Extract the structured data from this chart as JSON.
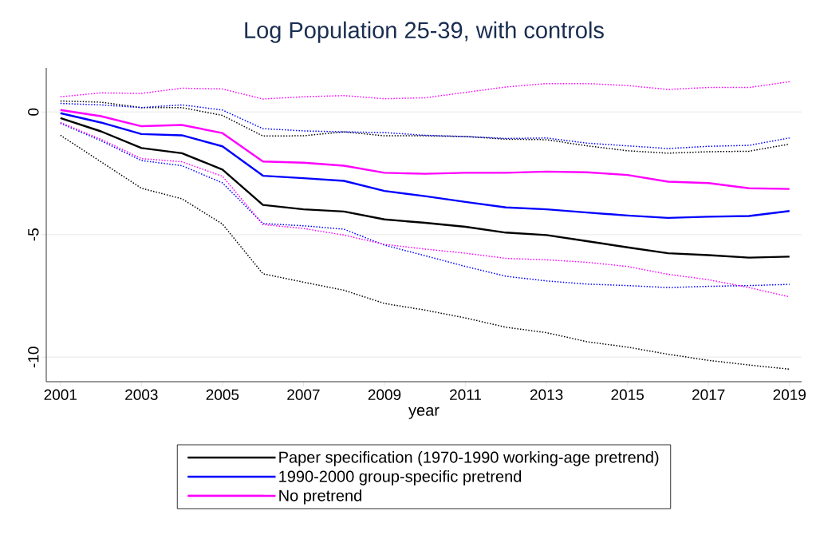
{
  "chart_data": {
    "type": "line",
    "title": "Log Population 25-39, with controls",
    "xlabel": "year",
    "x": [
      2001,
      2002,
      2003,
      2004,
      2005,
      2006,
      2007,
      2008,
      2009,
      2010,
      2011,
      2012,
      2013,
      2014,
      2015,
      2016,
      2017,
      2018,
      2019
    ],
    "series": [
      {
        "name": "Paper specification (1970-1990 working-age pretrend)",
        "color": "#000000",
        "values": [
          -0.25,
          -0.79,
          -1.47,
          -1.68,
          -2.35,
          -3.79,
          -3.97,
          -4.06,
          -4.38,
          -4.52,
          -4.68,
          -4.92,
          -5.02,
          -5.27,
          -5.52,
          -5.76,
          -5.84,
          -5.94,
          -5.9
        ]
      },
      {
        "name": "1990-2000 group-specific pretrend",
        "color": "#0000ff",
        "values": [
          -0.05,
          -0.43,
          -0.9,
          -0.95,
          -1.4,
          -2.6,
          -2.7,
          -2.81,
          -3.22,
          -3.43,
          -3.67,
          -3.89,
          -3.97,
          -4.1,
          -4.22,
          -4.32,
          -4.27,
          -4.24,
          -4.04
        ]
      },
      {
        "name": "No pretrend",
        "color": "#ff00ff",
        "values": [
          0.08,
          -0.17,
          -0.58,
          -0.53,
          -0.86,
          -2.02,
          -2.07,
          -2.19,
          -2.48,
          -2.52,
          -2.48,
          -2.48,
          -2.43,
          -2.46,
          -2.57,
          -2.84,
          -2.9,
          -3.11,
          -3.14
        ]
      },
      {
        "color": "#000000",
        "line_style": "dotted",
        "values": [
          0.45,
          0.4,
          0.18,
          0.18,
          -0.14,
          -0.98,
          -0.97,
          -0.81,
          -0.97,
          -0.97,
          -1.0,
          -1.11,
          -1.13,
          -1.38,
          -1.58,
          -1.68,
          -1.62,
          -1.6,
          -1.31
        ]
      },
      {
        "color": "#000000",
        "line_style": "dotted",
        "values": [
          -0.95,
          -2.03,
          -3.11,
          -3.54,
          -4.57,
          -6.6,
          -6.94,
          -7.27,
          -7.81,
          -8.08,
          -8.4,
          -8.78,
          -9.0,
          -9.37,
          -9.59,
          -9.88,
          -10.13,
          -10.32,
          -10.49
        ]
      },
      {
        "color": "#0000ff",
        "line_style": "dotted",
        "values": [
          0.35,
          0.29,
          0.18,
          0.29,
          0.08,
          -0.68,
          -0.77,
          -0.81,
          -0.84,
          -0.95,
          -1.0,
          -1.08,
          -1.06,
          -1.27,
          -1.38,
          -1.49,
          -1.4,
          -1.36,
          -1.06
        ]
      },
      {
        "color": "#0000ff",
        "line_style": "dotted",
        "values": [
          -0.46,
          -1.17,
          -1.98,
          -2.19,
          -2.89,
          -4.55,
          -4.64,
          -4.78,
          -5.43,
          -5.86,
          -6.3,
          -6.7,
          -6.89,
          -7.02,
          -7.08,
          -7.16,
          -7.11,
          -7.08,
          -7.03
        ]
      },
      {
        "color": "#ff00ff",
        "line_style": "dotted",
        "values": [
          0.62,
          0.78,
          0.76,
          0.97,
          0.94,
          0.53,
          0.62,
          0.67,
          0.54,
          0.58,
          0.8,
          1.02,
          1.16,
          1.16,
          1.08,
          0.92,
          1.0,
          1.0,
          1.24
        ]
      },
      {
        "color": "#ff00ff",
        "line_style": "dotted",
        "values": [
          -0.43,
          -1.11,
          -1.9,
          -2.03,
          -2.62,
          -4.59,
          -4.75,
          -5.02,
          -5.4,
          -5.59,
          -5.76,
          -5.97,
          -6.03,
          -6.13,
          -6.3,
          -6.62,
          -6.84,
          -7.16,
          -7.54
        ]
      }
    ],
    "xlim": [
      2000.65,
      2019.3
    ],
    "ylim": [
      -11,
      1.8
    ],
    "xticks": [
      2001,
      2003,
      2005,
      2007,
      2009,
      2011,
      2013,
      2015,
      2017,
      2019
    ],
    "yticks": [
      -10,
      -5,
      0
    ],
    "grid": "y",
    "legend": "bottom",
    "marker": "none",
    "line_style": "solid"
  }
}
